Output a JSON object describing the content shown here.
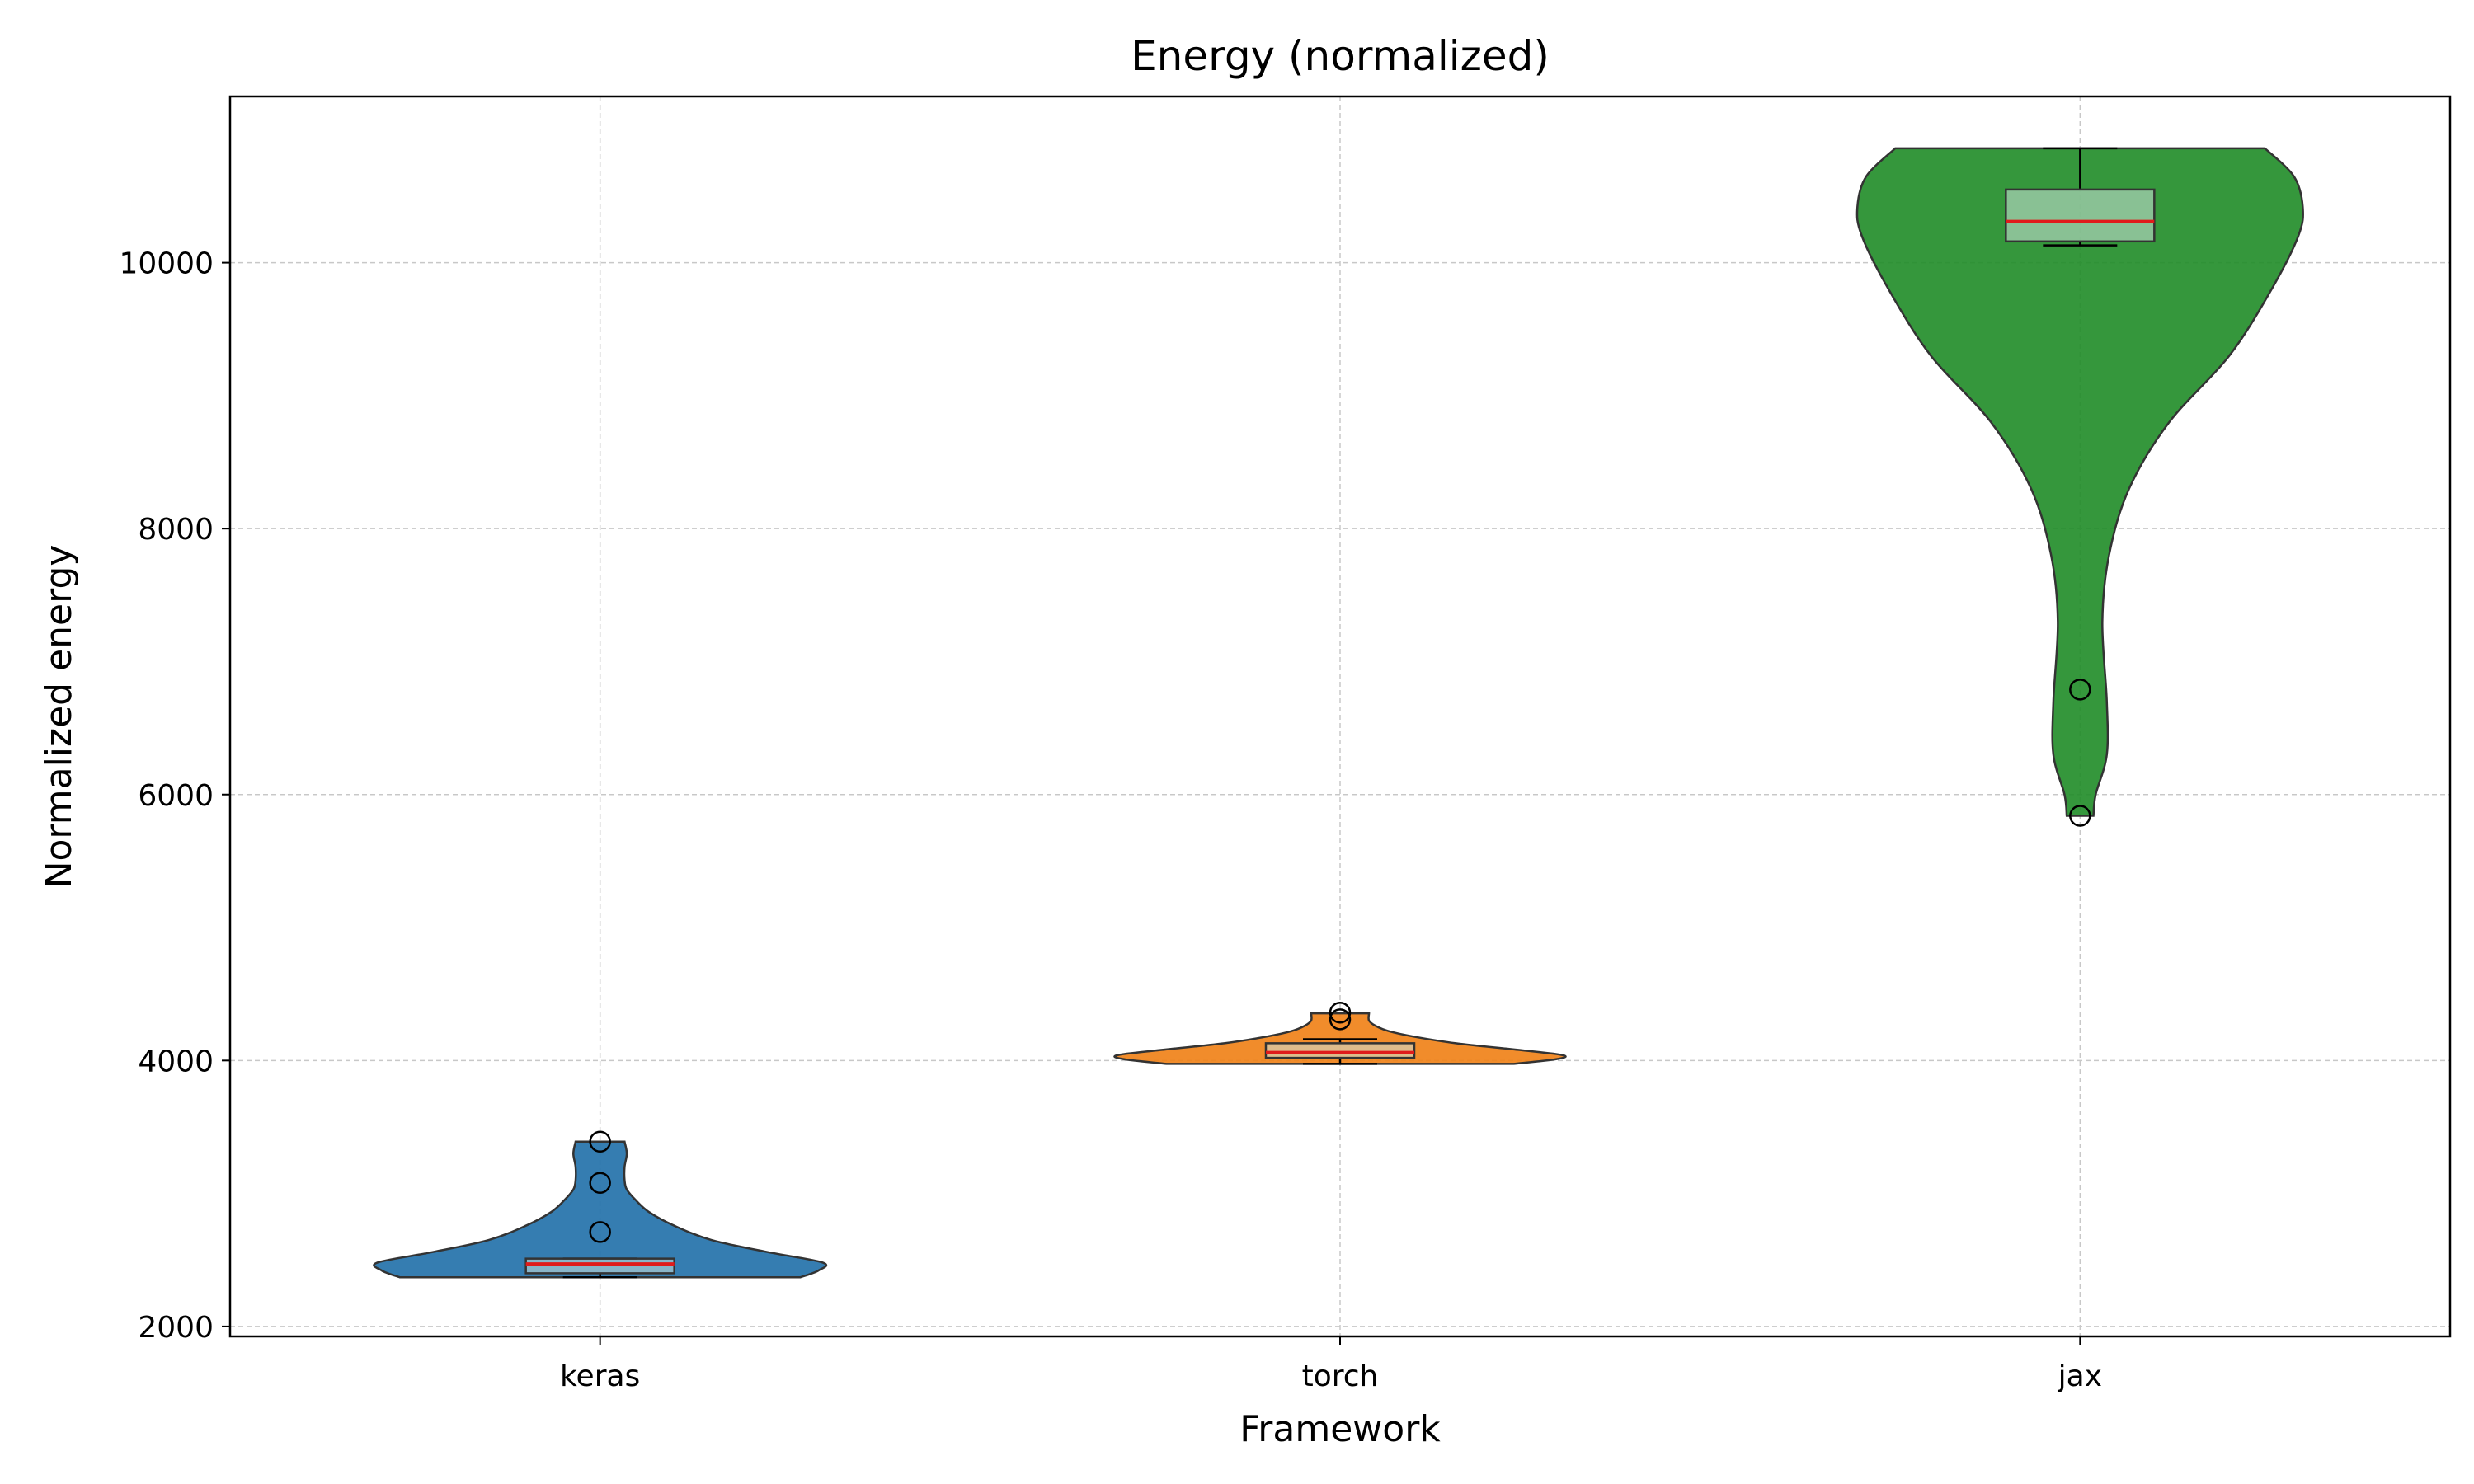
{
  "chart_data": {
    "type": "violin",
    "title": "Energy (normalized)",
    "xlabel": "Framework",
    "ylabel": "Normalized energy",
    "categories": [
      "keras",
      "torch",
      "jax"
    ],
    "ylim": [
      1925,
      11250
    ],
    "yticks": [
      2000,
      4000,
      6000,
      8000,
      10000
    ],
    "grid": true,
    "colors": [
      "#1f6fa8",
      "#f07f14",
      "#1f8c27"
    ],
    "box_face": "#cde3dc",
    "median_color": "#e01b1b",
    "series": [
      {
        "category": "keras",
        "min": 2370,
        "max": 3390,
        "box": {
          "whisker_low": 2370,
          "q1": 2400,
          "median": 2470,
          "q3": 2510,
          "whisker_high": 2510
        },
        "outliers": [
          3390,
          3080,
          2710
        ],
        "density": [
          [
            2370,
            0.9
          ],
          [
            2420,
            0.98
          ],
          [
            2480,
            1.0
          ],
          [
            2560,
            0.75
          ],
          [
            2650,
            0.5
          ],
          [
            2760,
            0.33
          ],
          [
            2860,
            0.22
          ],
          [
            2950,
            0.16
          ],
          [
            3030,
            0.12
          ],
          [
            3100,
            0.11
          ],
          [
            3200,
            0.11
          ],
          [
            3300,
            0.12
          ],
          [
            3390,
            0.11
          ]
        ]
      },
      {
        "category": "torch",
        "min": 3975,
        "max": 4355,
        "box": {
          "whisker_low": 3975,
          "q1": 4020,
          "median": 4060,
          "q3": 4130,
          "whisker_high": 4160
        },
        "outliers": [
          4360,
          4310
        ],
        "density": [
          [
            3975,
            0.78
          ],
          [
            4010,
            0.97
          ],
          [
            4040,
            1.0
          ],
          [
            4080,
            0.8
          ],
          [
            4130,
            0.52
          ],
          [
            4180,
            0.33
          ],
          [
            4220,
            0.22
          ],
          [
            4260,
            0.16
          ],
          [
            4300,
            0.13
          ],
          [
            4355,
            0.13
          ]
        ]
      },
      {
        "category": "jax",
        "min": 5840,
        "max": 10860,
        "box": {
          "whisker_low": 10130,
          "q1": 10160,
          "median": 10310,
          "q3": 10550,
          "whisker_high": 10860
        },
        "outliers": [
          6790,
          5840
        ],
        "density": [
          [
            5840,
            0.06
          ],
          [
            6000,
            0.07
          ],
          [
            6300,
            0.12
          ],
          [
            6700,
            0.12
          ],
          [
            7300,
            0.1
          ],
          [
            7800,
            0.13
          ],
          [
            8300,
            0.22
          ],
          [
            8800,
            0.4
          ],
          [
            9300,
            0.67
          ],
          [
            9800,
            0.86
          ],
          [
            10200,
            0.98
          ],
          [
            10420,
            1.0
          ],
          [
            10650,
            0.96
          ],
          [
            10860,
            0.83
          ]
        ]
      }
    ]
  }
}
